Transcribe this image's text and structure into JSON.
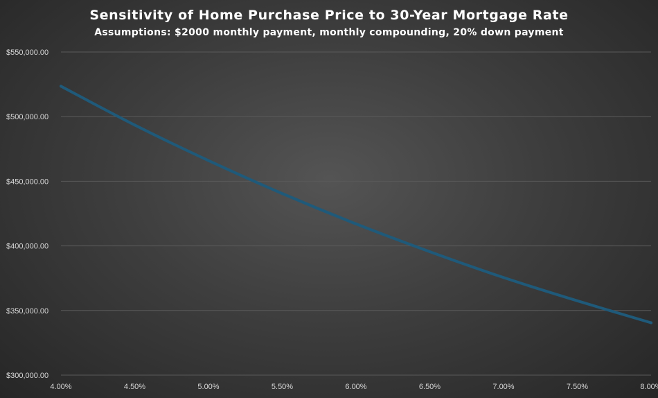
{
  "chart_data": {
    "type": "line",
    "title": "Sensitivity of Home Purchase Price to 30-Year Mortgage Rate",
    "subtitle": "Assumptions: $2000 monthly payment, monthly compounding, 20% down payment",
    "xlabel": "",
    "ylabel": "",
    "x_tick_labels": [
      "4.00%",
      "4.50%",
      "5.00%",
      "5.50%",
      "6.00%",
      "6.50%",
      "7.00%",
      "7.50%",
      "8.00%"
    ],
    "y_tick_labels": [
      "$300,000.00",
      "$350,000.00",
      "$400,000.00",
      "$450,000.00",
      "$500,000.00",
      "$550,000.00"
    ],
    "y_ticks": [
      300000,
      350000,
      400000,
      450000,
      500000,
      550000
    ],
    "xlim": [
      4.0,
      8.0
    ],
    "ylim": [
      300000,
      550000
    ],
    "grid": true,
    "legend": "none",
    "x": [
      4.0,
      4.5,
      5.0,
      5.5,
      6.0,
      6.5,
      7.0,
      7.5,
      8.0
    ],
    "values": [
      523500,
      493500,
      466000,
      440500,
      417000,
      395500,
      375500,
      357500,
      340500
    ],
    "line_color": "#1f5a7a",
    "grid_color": "#5a5a5a"
  }
}
